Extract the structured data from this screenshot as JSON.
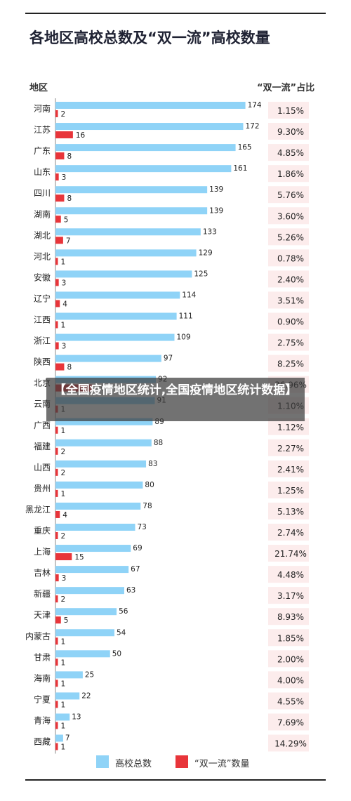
{
  "title": "各地区高校总数及“双一流”高校数量",
  "overlay_text": "【全国疫情地区统计,全国疫情地区统计数据】",
  "colors": {
    "total": "#8fd3f7",
    "double_first_class": "#e8353a",
    "ratio_bg": "#fcecec"
  },
  "chart_data": {
    "type": "bar",
    "orientation": "horizontal",
    "column_headers": {
      "region": "地区",
      "ratio": "“双一流”占比"
    },
    "categories": [
      "河南",
      "江苏",
      "广东",
      "山东",
      "四川",
      "湖南",
      "湖北",
      "河北",
      "安徽",
      "辽宁",
      "江西",
      "浙江",
      "陕西",
      "北京",
      "云南",
      "广西",
      "福建",
      "山西",
      "贵州",
      "黑龙江",
      "重庆",
      "上海",
      "吉林",
      "新疆",
      "天津",
      "内蒙古",
      "甘肃",
      "海南",
      "宁夏",
      "青海",
      "西藏"
    ],
    "series": [
      {
        "name": "高校总数",
        "values": [
          174,
          172,
          165,
          161,
          139,
          139,
          133,
          129,
          125,
          114,
          111,
          109,
          97,
          92,
          91,
          89,
          88,
          83,
          80,
          78,
          73,
          69,
          67,
          63,
          56,
          54,
          50,
          25,
          22,
          13,
          7
        ]
      },
      {
        "name": "“双一流”数量",
        "values": [
          2,
          16,
          8,
          3,
          8,
          5,
          7,
          1,
          3,
          4,
          1,
          3,
          8,
          34,
          1,
          1,
          2,
          2,
          1,
          4,
          2,
          15,
          3,
          2,
          5,
          1,
          1,
          1,
          1,
          1,
          1
        ]
      }
    ],
    "ratio_labels": [
      "1.15%",
      "9.30%",
      "4.85%",
      "1.86%",
      "5.76%",
      "3.60%",
      "5.26%",
      "0.78%",
      "2.40%",
      "3.51%",
      "0.90%",
      "2.75%",
      "8.25%",
      "36.96%",
      "1.10%",
      "1.12%",
      "2.27%",
      "2.41%",
      "1.25%",
      "5.13%",
      "2.74%",
      "21.74%",
      "4.48%",
      "3.17%",
      "8.93%",
      "1.85%",
      "2.00%",
      "4.00%",
      "4.55%",
      "7.69%",
      "14.29%"
    ],
    "legend": {
      "position": "bottom",
      "entries": [
        "高校总数",
        "“双一流”数量"
      ]
    }
  }
}
